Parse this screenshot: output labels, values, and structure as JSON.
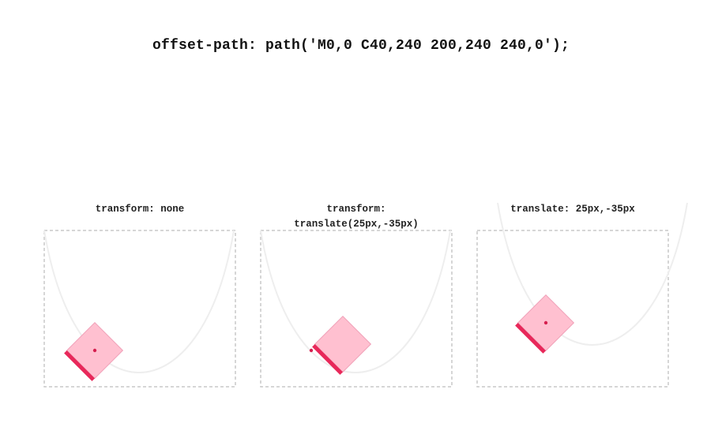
{
  "heading": "offset-path: path('M0,0 C40,240 200,240 240,0');",
  "demos": [
    {
      "label_lines": [
        "transform: none"
      ]
    },
    {
      "label_lines": [
        "transform:",
        "translate(25px,-35px)"
      ]
    },
    {
      "label_lines": [
        "translate: 25px,-35px"
      ]
    }
  ],
  "colors": {
    "box_fill": "#ffc0d0",
    "box_stroke": "#f0a0b8",
    "box_edge": "#e8285a",
    "anchor_dot": "#d61f4f",
    "path_curve": "#eeeeee",
    "frame": "#c8c8c8"
  }
}
